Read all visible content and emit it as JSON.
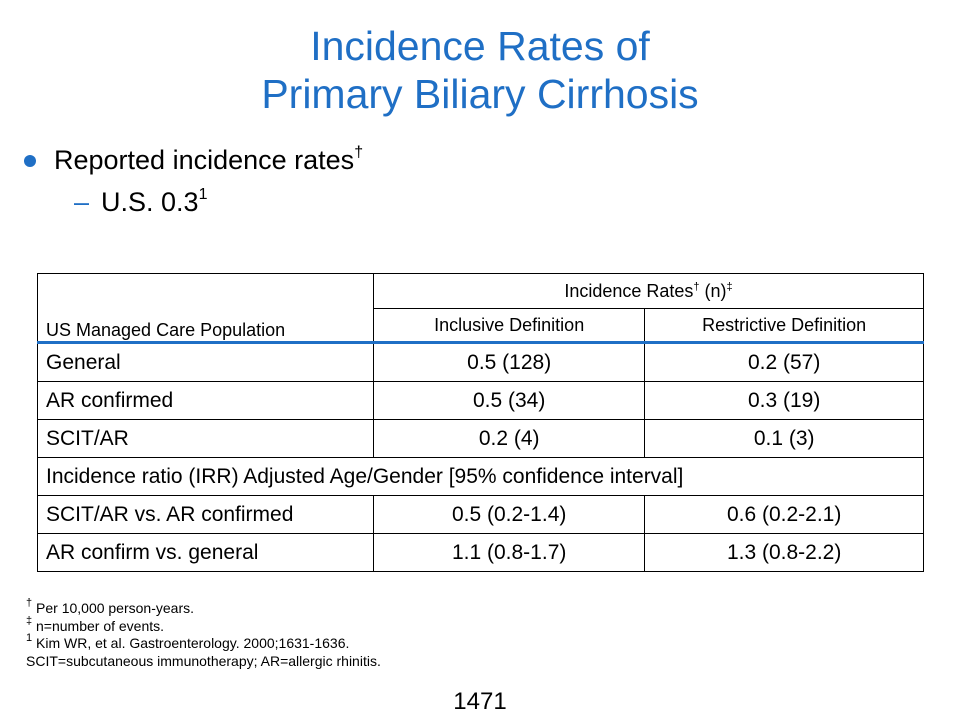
{
  "title": {
    "line1": "Incidence Rates of",
    "line2": "Primary Biliary Cirrhosis"
  },
  "bullets": {
    "main_text": "Reported incidence rates",
    "main_mark": "†",
    "sub_dash": "–",
    "sub_text": "U.S. 0.3",
    "sub_mark": "1"
  },
  "table": {
    "group_header": "Incidence Rates",
    "group_header_dagger": "†",
    "group_header_n": " (n)",
    "group_header_ddagger": "‡",
    "population_header": "US Managed Care Population",
    "col_inclusive": "Inclusive Definition",
    "col_restrictive": "Restrictive Definition",
    "rows": [
      {
        "label": "General",
        "inclusive": "0.5 (128)",
        "restrictive": "0.2 (57)"
      },
      {
        "label": "AR confirmed",
        "inclusive": "0.5 (34)",
        "restrictive": "0.3 (19)"
      },
      {
        "label": "SCIT/AR",
        "inclusive": "0.2 (4)",
        "restrictive": "0.1 (3)"
      }
    ],
    "span_row": "Incidence ratio (IRR) Adjusted Age/Gender [95% confidence interval]",
    "ratio_rows": [
      {
        "label": "SCIT/AR vs. AR confirmed",
        "inclusive": "0.5 (0.2-1.4)",
        "restrictive": "0.6 (0.2-2.1)"
      },
      {
        "label": "AR confirm vs. general",
        "inclusive": "1.1 (0.8-1.7)",
        "restrictive": "1.3 (0.8-2.2)"
      }
    ]
  },
  "footnotes": [
    {
      "mark": "†",
      "text": " Per 10,000 person-years."
    },
    {
      "mark": "‡",
      "text": " n=number of events."
    },
    {
      "mark": "1",
      "text": " Kim WR, et al. Gastroenterology. 2000;1631-1636."
    },
    {
      "mark": "",
      "text": "SCIT=subcutaneous immunotherapy; AR=allergic rhinitis."
    }
  ],
  "page_number": "1471",
  "colors": {
    "accent": "#1f6fc5",
    "text": "#000000"
  }
}
